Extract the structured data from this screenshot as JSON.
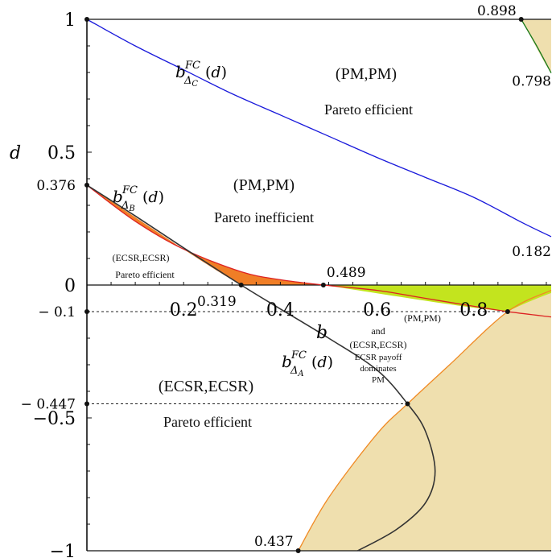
{
  "chart_data": {
    "type": "line",
    "ylabel": "d",
    "xlabel": "b",
    "xlim": [
      0,
      0.96
    ],
    "ylim": [
      -1,
      1
    ],
    "grid": false,
    "x_ticks": [
      {
        "value": 0.2,
        "label": "0.2"
      },
      {
        "value": 0.4,
        "label": "0.4"
      },
      {
        "value": 0.6,
        "label": "0.6"
      },
      {
        "value": 0.8,
        "label": "0.8"
      }
    ],
    "y_ticks": [
      {
        "value": 1,
        "label": "1"
      },
      {
        "value": 0.5,
        "label": "0.5"
      },
      {
        "value": 0,
        "label": "0"
      },
      {
        "value": -0.5,
        "label": "-0.5"
      },
      {
        "value": -1,
        "label": "-1"
      }
    ],
    "y_marks": [
      {
        "value": 0.376,
        "label": "0.376"
      },
      {
        "value": -0.1,
        "label": "- 0.1"
      },
      {
        "value": -0.447,
        "label": "- 0.447"
      }
    ],
    "point_labels": [
      {
        "x": 0.898,
        "y": 1,
        "label": "0.898"
      },
      {
        "x": 0.96,
        "y": 0.798,
        "label": "0.798"
      },
      {
        "x": 0.96,
        "y": 0.182,
        "label": "0.182"
      },
      {
        "x": 0.489,
        "y": 0,
        "label": "0.489"
      },
      {
        "x": 0.319,
        "y": 0,
        "label": "0.319"
      },
      {
        "x": 0.437,
        "y": -1,
        "label": "0.437"
      }
    ],
    "series": [
      {
        "name": "b^{FC}_{Δ_C}(d)",
        "color": "#1a1adb",
        "x": [
          0.0,
          0.1,
          0.2,
          0.3,
          0.4,
          0.5,
          0.6,
          0.7,
          0.8,
          0.9,
          0.96
        ],
        "y": [
          1.0,
          0.9,
          0.81,
          0.72,
          0.64,
          0.56,
          0.48,
          0.405,
          0.33,
          0.235,
          0.182
        ]
      },
      {
        "name": "b^{FC}_{Δ_B}(d)",
        "color": "#dd2222",
        "x": [
          0.0,
          0.1,
          0.2,
          0.319,
          0.4,
          0.489,
          0.6,
          0.7,
          0.8,
          0.87,
          0.96
        ],
        "y": [
          0.376,
          0.24,
          0.135,
          0.05,
          0.02,
          0.0,
          -0.02,
          -0.05,
          -0.08,
          -0.1,
          -0.12
        ]
      },
      {
        "name": "b^{FC}_{Δ_A}(d)",
        "color": "#333333",
        "x": [
          0.0,
          0.1,
          0.2,
          0.319,
          0.4,
          0.5,
          0.6,
          0.663,
          0.7,
          0.72,
          0.7,
          0.64,
          0.56
        ],
        "y": [
          0.376,
          0.26,
          0.14,
          0.0,
          -0.09,
          -0.2,
          -0.32,
          -0.447,
          -0.55,
          -0.7,
          -0.82,
          -0.92,
          -1.0
        ]
      },
      {
        "name": "",
        "color": "#f08a24",
        "x": [
          0.437,
          0.5,
          0.6,
          0.663,
          0.75,
          0.87,
          0.96
        ],
        "y": [
          -1.0,
          -0.8,
          -0.56,
          -0.447,
          -0.3,
          -0.1,
          -0.02
        ]
      },
      {
        "name": "",
        "color": "#1a7a1a",
        "x": [
          0.898,
          0.93,
          0.96
        ],
        "y": [
          1.0,
          0.9,
          0.798
        ]
      }
    ],
    "regions": [
      {
        "name": "(PM,PM)",
        "sub": "Pareto efficient"
      },
      {
        "name": "(PM,PM)",
        "sub": "Pareto inefficient"
      },
      {
        "name": "(ECSR,ECSR)",
        "sub": "Pareto efficient"
      },
      {
        "name": "(ECSR,ECSR)",
        "sub": "Pareto efficient"
      },
      {
        "name": "(PM,PM)",
        "lines": [
          "and",
          "(ECSR,ECSR)",
          "ECSR payoff",
          "dominates",
          "PM"
        ]
      }
    ],
    "colors": {
      "orange_region": "#f07e26",
      "green_region": "#c3e41e",
      "tan_region": "#efdfae"
    }
  }
}
